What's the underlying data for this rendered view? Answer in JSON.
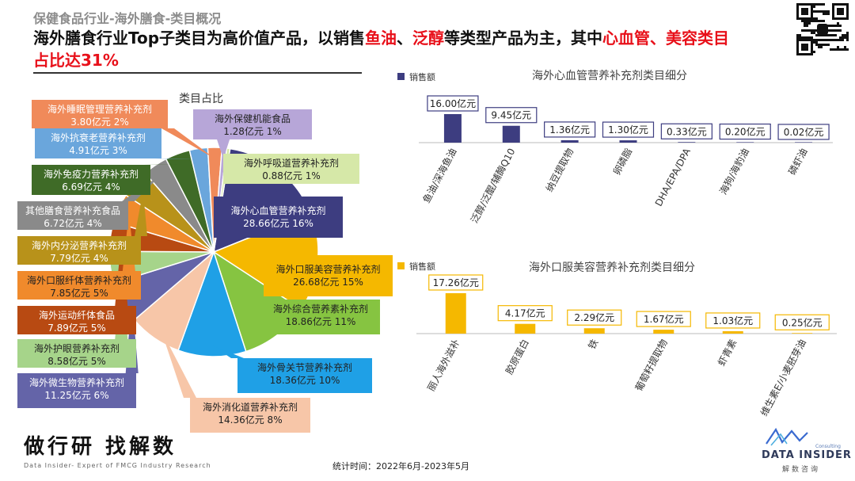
{
  "header": {
    "section_title": "保健食品行业-海外膳食-类目概况",
    "headline_parts": [
      "海外膳食行业Top子类目为高价值产品，以销售",
      "鱼油",
      "、",
      "泛醇",
      "等类型产品为主，其中",
      "心血管、美容类目占比达31%"
    ]
  },
  "colors": {
    "accent_red": "#e8101a",
    "navy": "#3d3d80",
    "gold": "#f5b800"
  },
  "chart_data": [
    {
      "type": "pie",
      "title": "类目占比",
      "unit": "亿元",
      "slices": [
        {
          "label": "海外心血管营养补充剂",
          "value": 28.66,
          "value_text": "28.66亿元",
          "pct": "16%",
          "color": "#3d3d80"
        },
        {
          "label": "海外口服美容营养补充剂",
          "value": 26.68,
          "value_text": "26.68亿元",
          "pct": "15%",
          "color": "#f5b800"
        },
        {
          "label": "海外综合营养素补充剂",
          "value": 18.86,
          "value_text": "18.86亿元",
          "pct": "11%",
          "color": "#86c441"
        },
        {
          "label": "海外骨关节营养补充剂",
          "value": 18.36,
          "value_text": "18.36亿元",
          "pct": "10%",
          "color": "#1fa0e6"
        },
        {
          "label": "海外消化道营养补充剂",
          "value": 14.36,
          "value_text": "14.36亿元",
          "pct": "8%",
          "color": "#f7c6a8"
        },
        {
          "label": "海外微生物营养补充剂",
          "value": 11.25,
          "value_text": "11.25亿元",
          "pct": "6%",
          "color": "#6464a8"
        },
        {
          "label": "海外护眼营养补充剂",
          "value": 8.58,
          "value_text": "8.58亿元",
          "pct": "5%",
          "color": "#a6d48a"
        },
        {
          "label": "海外运动纤体食品",
          "value": 7.89,
          "value_text": "7.89亿元",
          "pct": "5%",
          "color": "#b84a12"
        },
        {
          "label": "海外口服纤体营养补充剂",
          "value": 7.85,
          "value_text": "7.85亿元",
          "pct": "5%",
          "color": "#f08a2c"
        },
        {
          "label": "海外内分泌营养补充剂",
          "value": 7.79,
          "value_text": "7.79亿元",
          "pct": "4%",
          "color": "#b8921a"
        },
        {
          "label": "其他膳食营养补充食品",
          "value": 6.72,
          "value_text": "6.72亿元",
          "pct": "4%",
          "color": "#8a8a8a"
        },
        {
          "label": "海外免疫力营养补充剂",
          "value": 6.69,
          "value_text": "6.69亿元",
          "pct": "4%",
          "color": "#3f6b27"
        },
        {
          "label": "海外抗衰老营养补充剂",
          "value": 4.91,
          "value_text": "4.91亿元",
          "pct": "3%",
          "color": "#6aa6dc"
        },
        {
          "label": "海外睡眠管理营养补充剂",
          "value": 3.8,
          "value_text": "3.80亿元",
          "pct": "2%",
          "color": "#f08a5a"
        },
        {
          "label": "海外保健机能食品",
          "value": 1.28,
          "value_text": "1.28亿元",
          "pct": "1%",
          "color": "#b7a6d8"
        },
        {
          "label": "海外呼吸道营养补充剂",
          "value": 0.88,
          "value_text": "0.88亿元",
          "pct": "1%",
          "color": "#d6e8a8"
        }
      ]
    },
    {
      "type": "bar",
      "title": "海外心血管营养补充剂类目细分",
      "series": [
        {
          "name": "销售额",
          "color": "#3d3d80",
          "values": [
            16.0,
            9.45,
            1.36,
            1.3,
            0.33,
            0.2,
            0.02
          ]
        }
      ],
      "categories": [
        "鱼油/深海鱼油",
        "泛醇/泛醌/辅酶Q10",
        "纳豆提取物",
        "卵磷脂",
        "DHA/EPA/DPA",
        "海狗/海豹油",
        "磷虾油"
      ],
      "value_labels": [
        "16.00亿元",
        "9.45亿元",
        "1.36亿元",
        "1.30亿元",
        "0.33亿元",
        "0.20亿元",
        "0.02亿元"
      ]
    },
    {
      "type": "bar",
      "title": "海外口服美容营养补充剂类目细分",
      "series": [
        {
          "name": "销售额",
          "color": "#f5b800",
          "values": [
            17.26,
            4.17,
            2.29,
            1.67,
            1.03,
            0.25
          ]
        }
      ],
      "categories": [
        "丽人海外滋补",
        "胶原蛋白",
        "铁",
        "葡萄籽提取物",
        "虾青素",
        "维生素E/小麦胚芽油"
      ],
      "value_labels": [
        "17.26亿元",
        "4.17亿元",
        "2.29亿元",
        "1.67亿元",
        "1.03亿元",
        "0.25亿元"
      ]
    }
  ],
  "footer": {
    "stat_time": "统计时间：2022年6月-2023年5月",
    "brand_cn": "做行研 找解数",
    "brand_sub": "Data Insider- Expert of FMCG Industry Research",
    "logo_consulting": "Consulting",
    "logo_en": "DATA INSIDER",
    "logo_cn": "解数咨询"
  }
}
